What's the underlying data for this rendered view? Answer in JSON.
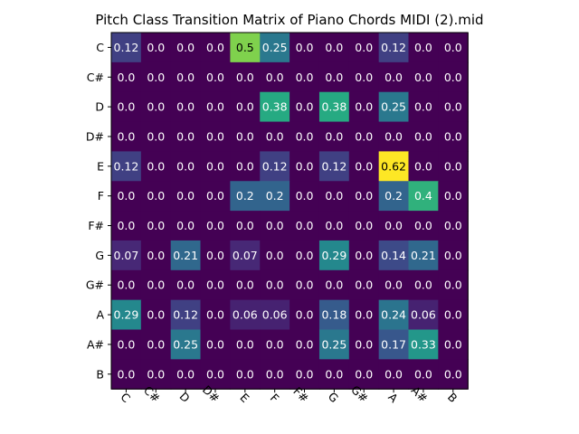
{
  "chart_data": {
    "type": "heatmap",
    "title": "Pitch Class Transition Matrix of Piano Chords MIDI (2).mid",
    "xlabel": "",
    "ylabel": "",
    "x_categories": [
      "C",
      "C#",
      "D",
      "D#",
      "E",
      "F",
      "F#",
      "G",
      "G#",
      "A",
      "A#",
      "B"
    ],
    "y_categories": [
      "C",
      "C#",
      "D",
      "D#",
      "E",
      "F",
      "F#",
      "G",
      "G#",
      "A",
      "A#",
      "B"
    ],
    "colormap": "viridis",
    "value_range": [
      0,
      0.62
    ],
    "values": [
      [
        0.12,
        0.0,
        0.0,
        0.0,
        0.5,
        0.25,
        0.0,
        0.0,
        0.0,
        0.12,
        0.0,
        0.0
      ],
      [
        0.0,
        0.0,
        0.0,
        0.0,
        0.0,
        0.0,
        0.0,
        0.0,
        0.0,
        0.0,
        0.0,
        0.0
      ],
      [
        0.0,
        0.0,
        0.0,
        0.0,
        0.0,
        0.38,
        0.0,
        0.38,
        0.0,
        0.25,
        0.0,
        0.0
      ],
      [
        0.0,
        0.0,
        0.0,
        0.0,
        0.0,
        0.0,
        0.0,
        0.0,
        0.0,
        0.0,
        0.0,
        0.0
      ],
      [
        0.12,
        0.0,
        0.0,
        0.0,
        0.0,
        0.12,
        0.0,
        0.12,
        0.0,
        0.62,
        0.0,
        0.0
      ],
      [
        0.0,
        0.0,
        0.0,
        0.0,
        0.2,
        0.2,
        0.0,
        0.0,
        0.0,
        0.2,
        0.4,
        0.0
      ],
      [
        0.0,
        0.0,
        0.0,
        0.0,
        0.0,
        0.0,
        0.0,
        0.0,
        0.0,
        0.0,
        0.0,
        0.0
      ],
      [
        0.07,
        0.0,
        0.21,
        0.0,
        0.07,
        0.0,
        0.0,
        0.29,
        0.0,
        0.14,
        0.21,
        0.0
      ],
      [
        0.0,
        0.0,
        0.0,
        0.0,
        0.0,
        0.0,
        0.0,
        0.0,
        0.0,
        0.0,
        0.0,
        0.0
      ],
      [
        0.29,
        0.0,
        0.12,
        0.0,
        0.06,
        0.06,
        0.0,
        0.18,
        0.0,
        0.24,
        0.06,
        0.0
      ],
      [
        0.0,
        0.0,
        0.25,
        0.0,
        0.0,
        0.0,
        0.0,
        0.25,
        0.0,
        0.17,
        0.33,
        0.0
      ],
      [
        0.0,
        0.0,
        0.0,
        0.0,
        0.0,
        0.0,
        0.0,
        0.0,
        0.0,
        0.0,
        0.0,
        0.0
      ]
    ],
    "cell_labels": [
      [
        "0.12",
        "0.0",
        "0.0",
        "0.0",
        "0.5",
        "0.25",
        "0.0",
        "0.0",
        "0.0",
        "0.12",
        "0.0",
        "0.0"
      ],
      [
        "0.0",
        "0.0",
        "0.0",
        "0.0",
        "0.0",
        "0.0",
        "0.0",
        "0.0",
        "0.0",
        "0.0",
        "0.0",
        "0.0"
      ],
      [
        "0.0",
        "0.0",
        "0.0",
        "0.0",
        "0.0",
        "0.38",
        "0.0",
        "0.38",
        "0.0",
        "0.25",
        "0.0",
        "0.0"
      ],
      [
        "0.0",
        "0.0",
        "0.0",
        "0.0",
        "0.0",
        "0.0",
        "0.0",
        "0.0",
        "0.0",
        "0.0",
        "0.0",
        "0.0"
      ],
      [
        "0.12",
        "0.0",
        "0.0",
        "0.0",
        "0.0",
        "0.12",
        "0.0",
        "0.12",
        "0.0",
        "0.62",
        "0.0",
        "0.0"
      ],
      [
        "0.0",
        "0.0",
        "0.0",
        "0.0",
        "0.2",
        "0.2",
        "0.0",
        "0.0",
        "0.0",
        "0.2",
        "0.4",
        "0.0"
      ],
      [
        "0.0",
        "0.0",
        "0.0",
        "0.0",
        "0.0",
        "0.0",
        "0.0",
        "0.0",
        "0.0",
        "0.0",
        "0.0",
        "0.0"
      ],
      [
        "0.07",
        "0.0",
        "0.21",
        "0.0",
        "0.07",
        "0.0",
        "0.0",
        "0.29",
        "0.0",
        "0.14",
        "0.21",
        "0.0"
      ],
      [
        "0.0",
        "0.0",
        "0.0",
        "0.0",
        "0.0",
        "0.0",
        "0.0",
        "0.0",
        "0.0",
        "0.0",
        "0.0",
        "0.0"
      ],
      [
        "0.29",
        "0.0",
        "0.12",
        "0.0",
        "0.06",
        "0.06",
        "0.0",
        "0.18",
        "0.0",
        "0.24",
        "0.06",
        "0.0"
      ],
      [
        "0.0",
        "0.0",
        "0.25",
        "0.0",
        "0.0",
        "0.0",
        "0.0",
        "0.25",
        "0.0",
        "0.17",
        "0.33",
        "0.0"
      ],
      [
        "0.0",
        "0.0",
        "0.0",
        "0.0",
        "0.0",
        "0.0",
        "0.0",
        "0.0",
        "0.0",
        "0.0",
        "0.0",
        "0.0"
      ]
    ],
    "x_tick_rotation_deg": 45,
    "grid": false,
    "legend": "none"
  }
}
